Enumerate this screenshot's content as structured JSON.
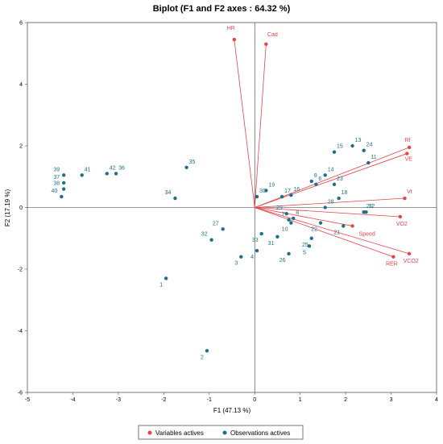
{
  "chart_data": {
    "type": "scatter",
    "subtype": "biplot",
    "title": "Biplot (F1 and F2 axes : 64.32 %)",
    "xlabel": "F1 (47.13 %)",
    "ylabel": "F2 (17.19 %)",
    "xlim": [
      -5,
      4
    ],
    "ylim": [
      -6,
      6
    ],
    "xticks": [
      -5,
      -4,
      -3,
      -2,
      -1,
      0,
      1,
      2,
      3,
      4
    ],
    "yticks": [
      -6,
      -4,
      -2,
      0,
      2,
      4,
      6
    ],
    "grid": false,
    "legend_position": "bottom",
    "colors": {
      "variables": "#e8434a",
      "observations": "#1f6f8b"
    },
    "series": [
      {
        "name": "Variables actives",
        "points": [
          {
            "label": "HR",
            "x": -0.45,
            "y": 5.45
          },
          {
            "label": "Cad",
            "x": 0.25,
            "y": 5.3
          },
          {
            "label": "Rf",
            "x": 3.4,
            "y": 1.95
          },
          {
            "label": "VE",
            "x": 3.35,
            "y": 1.75
          },
          {
            "label": "Vt",
            "x": 3.3,
            "y": 0.3
          },
          {
            "label": "VO2",
            "x": 3.2,
            "y": -0.3
          },
          {
            "label": "Speed",
            "x": 2.15,
            "y": -0.6
          },
          {
            "label": "VCO2",
            "x": 3.4,
            "y": -1.5
          },
          {
            "label": "RER",
            "x": 3.05,
            "y": -1.6
          }
        ]
      },
      {
        "name": "Observations actives",
        "points": [
          {
            "label": "1",
            "x": -1.95,
            "y": -2.3
          },
          {
            "label": "2",
            "x": -1.05,
            "y": -4.65
          },
          {
            "label": "3",
            "x": -0.3,
            "y": -1.6
          },
          {
            "label": "4",
            "x": 0.05,
            "y": -1.4
          },
          {
            "label": "5",
            "x": 1.2,
            "y": -1.25
          },
          {
            "label": "6",
            "x": 1.35,
            "y": 0.75
          },
          {
            "label": "7",
            "x": 0.75,
            "y": -0.4
          },
          {
            "label": "8",
            "x": 0.85,
            "y": -0.35
          },
          {
            "label": "9",
            "x": 1.25,
            "y": 0.85
          },
          {
            "label": "10",
            "x": 0.8,
            "y": -0.5
          },
          {
            "label": "11",
            "x": 2.5,
            "y": 1.45
          },
          {
            "label": "12",
            "x": 2.45,
            "y": -0.15
          },
          {
            "label": "13",
            "x": 2.15,
            "y": 2.0
          },
          {
            "label": "14",
            "x": 1.55,
            "y": 1.05
          },
          {
            "label": "15",
            "x": 1.75,
            "y": 1.8
          },
          {
            "label": "16",
            "x": 0.8,
            "y": 0.4
          },
          {
            "label": "17",
            "x": 0.6,
            "y": 0.35
          },
          {
            "label": "18",
            "x": 1.85,
            "y": 0.3
          },
          {
            "label": "19",
            "x": 0.25,
            "y": 0.55
          },
          {
            "label": "20",
            "x": 2.4,
            "y": -0.15
          },
          {
            "label": "21",
            "x": 1.95,
            "y": -0.6
          },
          {
            "label": "22",
            "x": 1.45,
            "y": -0.5
          },
          {
            "label": "23",
            "x": 1.75,
            "y": 0.75
          },
          {
            "label": "24",
            "x": 2.4,
            "y": 1.85
          },
          {
            "label": "25",
            "x": 1.25,
            "y": -1.0
          },
          {
            "label": "26",
            "x": 0.75,
            "y": -1.5
          },
          {
            "label": "27",
            "x": -0.7,
            "y": -0.7
          },
          {
            "label": "28",
            "x": 1.55,
            "y": 0.0
          },
          {
            "label": "29",
            "x": 0.7,
            "y": -0.2
          },
          {
            "label": "30",
            "x": 0.05,
            "y": 0.35
          },
          {
            "label": "31",
            "x": 0.5,
            "y": -0.95
          },
          {
            "label": "32",
            "x": -0.95,
            "y": -1.05
          },
          {
            "label": "33",
            "x": 0.15,
            "y": -0.85
          },
          {
            "label": "34",
            "x": -1.75,
            "y": 0.3
          },
          {
            "label": "35",
            "x": -1.5,
            "y": 1.3
          },
          {
            "label": "36",
            "x": -3.05,
            "y": 1.1
          },
          {
            "label": "37",
            "x": -4.2,
            "y": 0.8
          },
          {
            "label": "38",
            "x": -4.2,
            "y": 0.6
          },
          {
            "label": "39",
            "x": -4.2,
            "y": 1.05
          },
          {
            "label": "40",
            "x": -4.25,
            "y": 0.35
          },
          {
            "label": "41",
            "x": -3.8,
            "y": 1.05
          },
          {
            "label": "42",
            "x": -3.25,
            "y": 1.1
          }
        ]
      }
    ]
  }
}
